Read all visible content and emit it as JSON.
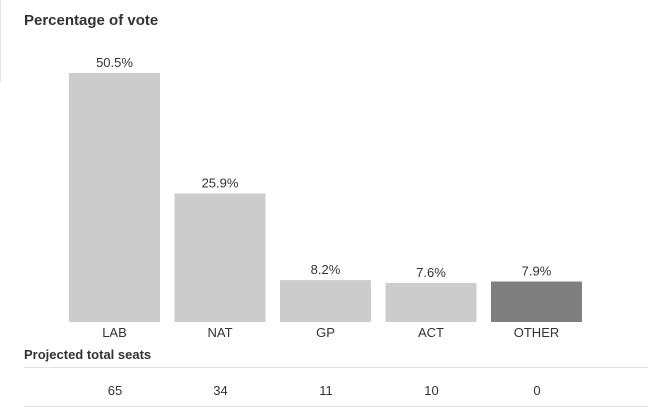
{
  "title": "Percentage of vote",
  "chart_data": {
    "type": "bar",
    "title": "Percentage of vote",
    "categories": [
      "LAB",
      "NAT",
      "GP",
      "ACT",
      "OTHER"
    ],
    "values": [
      50.5,
      25.9,
      8.2,
      7.6,
      7.9
    ],
    "value_labels": [
      "50.5%",
      "25.9%",
      "8.2%",
      "7.6%",
      "7.9%"
    ],
    "min_bar_value": 7.6,
    "colors": [
      "#cccccc",
      "#cccccc",
      "#cccccc",
      "#cccccc",
      "#7f7f7f"
    ],
    "ylim": [
      0,
      50.5
    ],
    "grid": false,
    "xlabel": "",
    "ylabel": ""
  },
  "seats": {
    "title": "Projected total seats",
    "values": [
      "65",
      "34",
      "11",
      "10",
      "0"
    ]
  }
}
